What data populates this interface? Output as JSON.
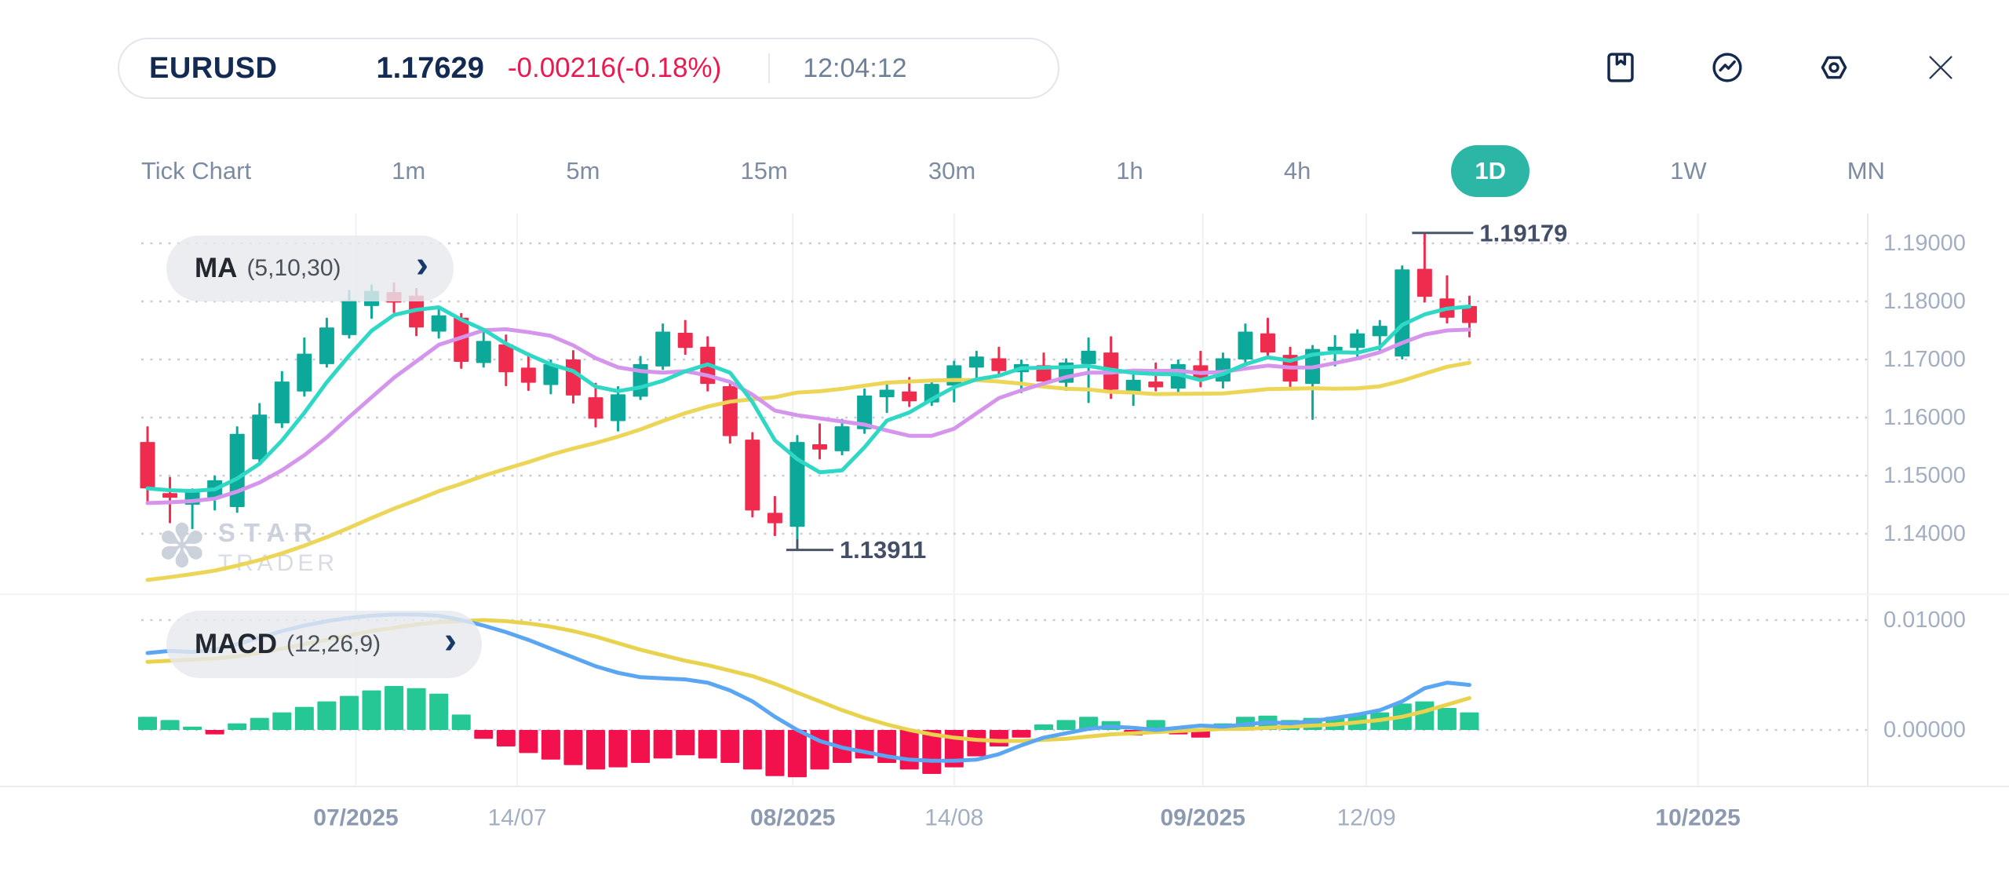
{
  "header": {
    "symbol": "EURUSD",
    "price": "1.17629",
    "change": "-0.00216(-0.18%)",
    "time": "12:04:12"
  },
  "toolbar": {
    "icons": [
      "bookmark",
      "indicator-trend",
      "settings",
      "close"
    ]
  },
  "timeframes": {
    "items": [
      "Tick Chart",
      "1m",
      "5m",
      "15m",
      "30m",
      "1h",
      "4h",
      "1D",
      "1W",
      "MN"
    ],
    "selected": "1D"
  },
  "indicators": {
    "ma": {
      "label": "MA",
      "params": "(5,10,30)"
    },
    "macd": {
      "label": "MACD",
      "params": "(12,26,9)"
    }
  },
  "watermark": {
    "line1": "STAR",
    "line2": "TRADER"
  },
  "colors": {
    "accent_teal": "#2cb6a6",
    "text_navy": "#132a52",
    "text_red": "#e91a4f",
    "text_gray": "#7d8ca2",
    "axis_text": "#a2aec2",
    "axis_text_major": "#8c9ab1",
    "grid_dot": "#c8cdd7",
    "grid_vline": "#eef1f5",
    "bull": "#0ca89a",
    "bear": "#ef2c4e",
    "ma5": "#2fd8c5",
    "ma10": "#d695ec",
    "ma30": "#ecd557",
    "macd_line": "#5aa6f2",
    "signal_line": "#e9d34e",
    "hist_up": "#25c795",
    "hist_down": "#f2104d",
    "annotation": "#49556c"
  },
  "chart_data": {
    "type": "candlestick+macd",
    "title": "EURUSD 1D",
    "price_axis_ticks": [
      "1.19000",
      "1.18000",
      "1.17000",
      "1.16000",
      "1.15000",
      "1.14000"
    ],
    "macd_axis_ticks": [
      "0.01000",
      "0.00000"
    ],
    "x_ticks": [
      {
        "label": "07/2025",
        "i": 9.3,
        "major": true
      },
      {
        "label": "14/07",
        "i": 16.5,
        "major": false
      },
      {
        "label": "08/2025",
        "i": 28.8,
        "major": true
      },
      {
        "label": "14/08",
        "i": 36.0,
        "major": false
      },
      {
        "label": "09/2025",
        "i": 47.1,
        "major": true
      },
      {
        "label": "12/09",
        "i": 54.4,
        "major": false
      },
      {
        "label": "10/2025",
        "i": 69.2,
        "major": true
      }
    ],
    "annotations": {
      "high": {
        "label": "1.19179",
        "index": 57
      },
      "low": {
        "label": "1.13911",
        "index": 29
      }
    },
    "candles": [
      [
        1.1558,
        1.1585,
        1.1452,
        1.1478
      ],
      [
        1.147,
        1.1498,
        1.1418,
        1.1462
      ],
      [
        1.145,
        1.1478,
        1.1408,
        1.1472
      ],
      [
        1.1462,
        1.15,
        1.144,
        1.1492
      ],
      [
        1.1446,
        1.1585,
        1.1436,
        1.1572
      ],
      [
        1.1528,
        1.1625,
        1.152,
        1.1605
      ],
      [
        1.159,
        1.168,
        1.1582,
        1.1662
      ],
      [
        1.1645,
        1.1738,
        1.1636,
        1.171
      ],
      [
        1.1692,
        1.1772,
        1.1686,
        1.1755
      ],
      [
        1.1742,
        1.182,
        1.1736,
        1.1802
      ],
      [
        1.1792,
        1.1829,
        1.177,
        1.1818
      ],
      [
        1.1816,
        1.1833,
        1.178,
        1.1798
      ],
      [
        1.181,
        1.1823,
        1.174,
        1.1755
      ],
      [
        1.1748,
        1.1788,
        1.1736,
        1.1776
      ],
      [
        1.1772,
        1.178,
        1.1684,
        1.1696
      ],
      [
        1.1694,
        1.1748,
        1.1686,
        1.1732
      ],
      [
        1.1726,
        1.1743,
        1.1654,
        1.1678
      ],
      [
        1.1686,
        1.1712,
        1.1646,
        1.166
      ],
      [
        1.1656,
        1.17,
        1.164,
        1.1692
      ],
      [
        1.17,
        1.1716,
        1.1624,
        1.1638
      ],
      [
        1.1635,
        1.166,
        1.1583,
        1.1598
      ],
      [
        1.1594,
        1.1654,
        1.1576,
        1.164
      ],
      [
        1.1636,
        1.1706,
        1.163,
        1.1692
      ],
      [
        1.1688,
        1.1762,
        1.1682,
        1.1748
      ],
      [
        1.1746,
        1.1768,
        1.1708,
        1.172
      ],
      [
        1.1722,
        1.174,
        1.1645,
        1.1658
      ],
      [
        1.1654,
        1.1662,
        1.1555,
        1.1568
      ],
      [
        1.1562,
        1.1575,
        1.1428,
        1.144
      ],
      [
        1.1436,
        1.1465,
        1.1396,
        1.1418
      ],
      [
        1.1412,
        1.157,
        1.13911,
        1.1558
      ],
      [
        1.1554,
        1.159,
        1.1528,
        1.1545
      ],
      [
        1.1542,
        1.1598,
        1.1535,
        1.1585
      ],
      [
        1.158,
        1.165,
        1.1572,
        1.1638
      ],
      [
        1.1635,
        1.166,
        1.1608,
        1.1648
      ],
      [
        1.1645,
        1.167,
        1.1618,
        1.1628
      ],
      [
        1.1626,
        1.1665,
        1.162,
        1.1658
      ],
      [
        1.1655,
        1.1698,
        1.1626,
        1.169
      ],
      [
        1.1686,
        1.1715,
        1.1665,
        1.1705
      ],
      [
        1.1702,
        1.1722,
        1.167,
        1.168
      ],
      [
        1.1678,
        1.17,
        1.1642,
        1.1692
      ],
      [
        1.169,
        1.1712,
        1.1652,
        1.1662
      ],
      [
        1.166,
        1.1702,
        1.1646,
        1.1695
      ],
      [
        1.1692,
        1.1738,
        1.1625,
        1.1715
      ],
      [
        1.1712,
        1.174,
        1.1632,
        1.1648
      ],
      [
        1.1645,
        1.1678,
        1.162,
        1.1665
      ],
      [
        1.1662,
        1.1695,
        1.1645,
        1.1652
      ],
      [
        1.165,
        1.17,
        1.1642,
        1.1692
      ],
      [
        1.169,
        1.1715,
        1.1652,
        1.1665
      ],
      [
        1.1662,
        1.1712,
        1.165,
        1.1702
      ],
      [
        1.17,
        1.1762,
        1.1692,
        1.1748
      ],
      [
        1.1745,
        1.1772,
        1.17,
        1.1712
      ],
      [
        1.1708,
        1.1722,
        1.1652,
        1.1662
      ],
      [
        1.1658,
        1.1725,
        1.1596,
        1.1718
      ],
      [
        1.1715,
        1.1742,
        1.1688,
        1.1722
      ],
      [
        1.172,
        1.1752,
        1.17,
        1.1745
      ],
      [
        1.174,
        1.1768,
        1.1712,
        1.1758
      ],
      [
        1.1705,
        1.1862,
        1.17,
        1.1855
      ],
      [
        1.1856,
        1.19179,
        1.1798,
        1.1808
      ],
      [
        1.1805,
        1.1845,
        1.1762,
        1.1772
      ],
      [
        1.1792,
        1.181,
        1.1738,
        1.17629
      ]
    ],
    "ma_periods": [
      5,
      10,
      30
    ],
    "macd": {
      "line": [
        0.007,
        0.0072,
        0.0071,
        0.0073,
        0.0078,
        0.0084,
        0.009,
        0.0095,
        0.0099,
        0.0102,
        0.0104,
        0.0105,
        0.0105,
        0.0104,
        0.01,
        0.0095,
        0.0089,
        0.0082,
        0.0074,
        0.0066,
        0.0058,
        0.0052,
        0.0048,
        0.0047,
        0.0046,
        0.0043,
        0.0036,
        0.0026,
        0.0012,
        0.0,
        -0.001,
        -0.0016,
        -0.002,
        -0.0024,
        -0.0027,
        -0.0028,
        -0.0028,
        -0.0027,
        -0.0022,
        -0.0014,
        -0.0007,
        -0.0003,
        0.0001,
        0.0003,
        0.0002,
        0.0,
        0.0002,
        0.0004,
        0.0003,
        0.0005,
        0.0007,
        0.0006,
        0.0008,
        0.0011,
        0.0014,
        0.0018,
        0.0026,
        0.0038,
        0.0043,
        0.0041
      ],
      "signal": [
        0.0062,
        0.0063,
        0.0064,
        0.0065,
        0.0067,
        0.007,
        0.0074,
        0.0078,
        0.0082,
        0.0086,
        0.009,
        0.0093,
        0.0096,
        0.0098,
        0.0099,
        0.01,
        0.0099,
        0.0097,
        0.0094,
        0.009,
        0.0085,
        0.0079,
        0.0073,
        0.0068,
        0.0063,
        0.0059,
        0.0054,
        0.0049,
        0.0042,
        0.0034,
        0.0026,
        0.0018,
        0.0011,
        0.0005,
        0.0,
        -0.0004,
        -0.0007,
        -0.0009,
        -0.001,
        -0.001,
        -0.0009,
        -0.0008,
        -0.0006,
        -0.0004,
        -0.0003,
        -0.0002,
        -0.0001,
        0.0,
        0.0001,
        0.0001,
        0.0002,
        0.0003,
        0.0004,
        0.0005,
        0.0007,
        0.0009,
        0.0012,
        0.0017,
        0.0023,
        0.0029
      ],
      "histogram": [
        0.0012,
        0.0009,
        0.0003,
        -0.0004,
        0.0006,
        0.0011,
        0.0016,
        0.0021,
        0.0026,
        0.0031,
        0.0036,
        0.004,
        0.0038,
        0.0033,
        0.0014,
        -0.0008,
        -0.0015,
        -0.0021,
        -0.0027,
        -0.0032,
        -0.0036,
        -0.0034,
        -0.003,
        -0.0026,
        -0.0023,
        -0.0026,
        -0.003,
        -0.0036,
        -0.0042,
        -0.0043,
        -0.0036,
        -0.003,
        -0.0026,
        -0.003,
        -0.0036,
        -0.004,
        -0.0034,
        -0.0024,
        -0.0015,
        -0.0007,
        0.0005,
        0.0009,
        0.0012,
        0.0008,
        -0.0005,
        0.0009,
        -0.0004,
        -0.0007,
        0.0006,
        0.0012,
        0.0013,
        0.0009,
        0.0011,
        0.0012,
        0.0014,
        0.0016,
        0.0024,
        0.0026,
        0.002,
        0.0016
      ]
    }
  }
}
